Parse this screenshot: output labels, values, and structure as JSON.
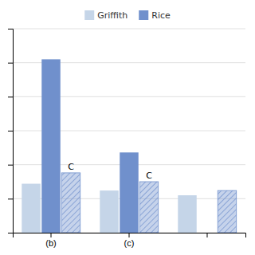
{
  "chart_data": {
    "type": "bar",
    "categories": [
      "(b)",
      "(c)",
      null
    ],
    "series": [
      {
        "name": "Griffith",
        "color": "#c5d5e8",
        "values": [
          0.72,
          0.62,
          0.55
        ]
      },
      {
        "name": "Rice",
        "color": "#7090cc",
        "values": [
          2.55,
          1.18,
          0.0
        ]
      },
      {
        "color": "#7090cc",
        "values": [
          0.88,
          0.75,
          0.62
        ]
      }
    ],
    "annotations": [
      "C",
      "C"
    ],
    "ylim": [
      0,
      3.0
    ],
    "yticks": [
      0,
      0.5,
      1,
      1.5,
      2,
      2.5,
      3
    ],
    "grid": true,
    "tick_labels": "x",
    "legend": "top"
  }
}
